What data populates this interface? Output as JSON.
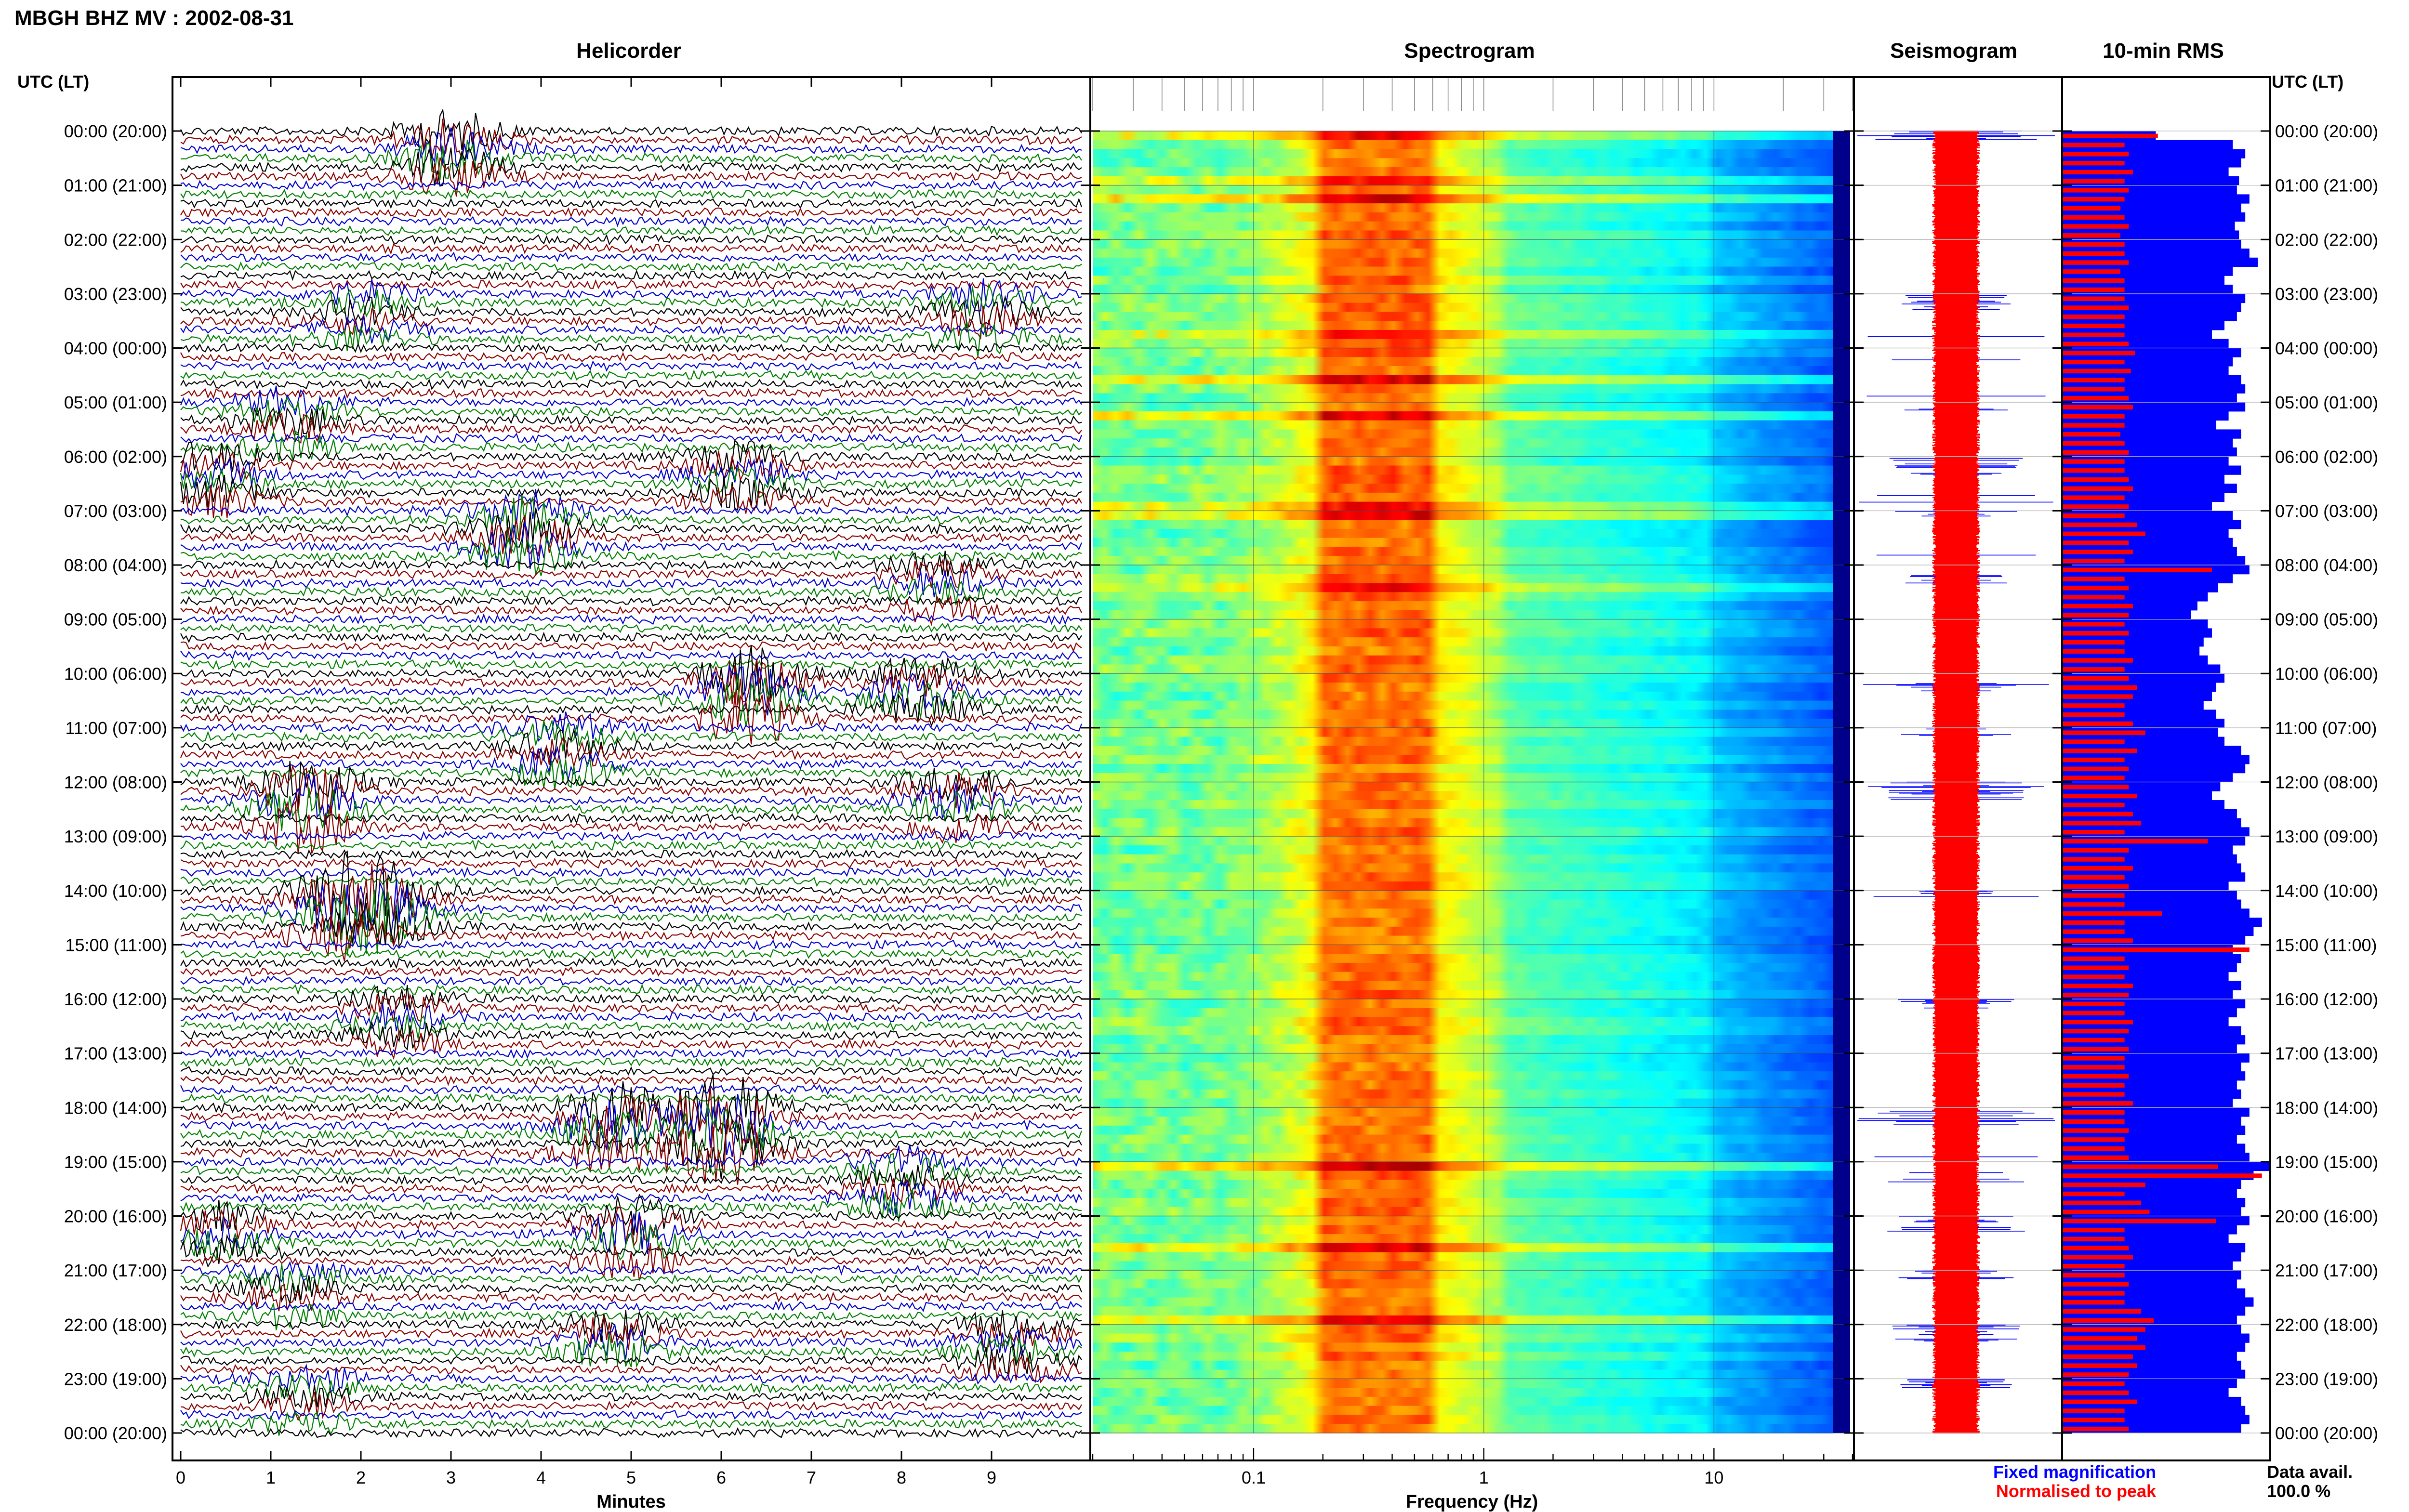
{
  "header": {
    "title": "MBGH BHZ MV : 2002-08-31"
  },
  "panels": {
    "helicorder": "Helicorder",
    "spectrogram": "Spectrogram",
    "seismogram": "Seismogram",
    "rms": "10-min RMS"
  },
  "axes": {
    "time_label_left": "UTC (LT)",
    "time_label_right": "UTC (LT)",
    "helicorder_xlabel": "Minutes",
    "spectrogram_xlabel": "Frequency (Hz)"
  },
  "legend": {
    "fixed": "Fixed magnification",
    "fixed_color": "#0000ff",
    "normalised": "Normalised to peak",
    "normalised_color": "#ff0000"
  },
  "availability": {
    "label": "Data avail.",
    "value": "100.0 %"
  },
  "chart_data": {
    "type": "heatmap",
    "station": "MBGH BHZ MV",
    "date": "2002-08-31",
    "time_labels": [
      "00:00 (20:00)",
      "01:00 (21:00)",
      "02:00 (22:00)",
      "03:00 (23:00)",
      "04:00 (00:00)",
      "05:00 (01:00)",
      "06:00 (02:00)",
      "07:00 (03:00)",
      "08:00 (04:00)",
      "09:00 (05:00)",
      "10:00 (06:00)",
      "11:00 (07:00)",
      "12:00 (08:00)",
      "13:00 (09:00)",
      "14:00 (10:00)",
      "15:00 (11:00)",
      "16:00 (12:00)",
      "17:00 (13:00)",
      "18:00 (14:00)",
      "19:00 (15:00)",
      "20:00 (16:00)",
      "21:00 (17:00)",
      "22:00 (18:00)",
      "23:00 (19:00)",
      "00:00 (20:00)"
    ],
    "helicorder": {
      "xlabel": "Minutes",
      "xticks": [
        "0",
        "1",
        "2",
        "3",
        "4",
        "5",
        "6",
        "7",
        "8",
        "9"
      ],
      "xlim": [
        0,
        10
      ],
      "trace_colors": [
        "#000000",
        "#8b0000",
        "#0000cd",
        "#008000"
      ],
      "events": [
        {
          "hour": 0,
          "minute": 3.0,
          "amp": 1.6
        },
        {
          "hour": 3,
          "minute": 8.9,
          "amp": 1.3
        },
        {
          "hour": 3,
          "minute": 2.0,
          "amp": 1.0
        },
        {
          "hour": 5,
          "minute": 1.2,
          "amp": 1.1
        },
        {
          "hour": 6,
          "minute": 0.4,
          "amp": 1.2
        },
        {
          "hour": 6,
          "minute": 6.2,
          "amp": 1.2
        },
        {
          "hour": 7,
          "minute": 3.8,
          "amp": 1.8
        },
        {
          "hour": 8,
          "minute": 8.4,
          "amp": 1.0
        },
        {
          "hour": 10,
          "minute": 6.3,
          "amp": 2.2
        },
        {
          "hour": 10,
          "minute": 8.2,
          "amp": 1.3
        },
        {
          "hour": 11,
          "minute": 4.2,
          "amp": 1.2
        },
        {
          "hour": 12,
          "minute": 1.4,
          "amp": 2.1
        },
        {
          "hour": 12,
          "minute": 8.6,
          "amp": 1.3
        },
        {
          "hour": 14,
          "minute": 1.8,
          "amp": 1.9
        },
        {
          "hour": 14,
          "minute": 2.2,
          "amp": 1.8
        },
        {
          "hour": 16,
          "minute": 2.4,
          "amp": 1.0
        },
        {
          "hour": 18,
          "minute": 4.8,
          "amp": 2.0
        },
        {
          "hour": 18,
          "minute": 6.0,
          "amp": 2.8
        },
        {
          "hour": 19,
          "minute": 8.0,
          "amp": 1.2
        },
        {
          "hour": 20,
          "minute": 5.0,
          "amp": 1.6
        },
        {
          "hour": 20,
          "minute": 0.4,
          "amp": 1.1
        },
        {
          "hour": 21,
          "minute": 1.2,
          "amp": 1.0
        },
        {
          "hour": 22,
          "minute": 4.8,
          "amp": 1.3
        },
        {
          "hour": 22,
          "minute": 9.2,
          "amp": 1.1
        },
        {
          "hour": 23,
          "minute": 1.4,
          "amp": 1.0
        }
      ]
    },
    "spectrogram": {
      "xlabel": "Frequency (Hz)",
      "xscale": "log",
      "xlim": [
        0.02,
        40
      ],
      "xticks": [
        "0.1",
        "1",
        "10"
      ],
      "peak_band_hz": [
        0.2,
        0.6
      ],
      "colormap": "jet"
    },
    "seismogram": {
      "series": [
        "Fixed magnification",
        "Normalised to peak"
      ]
    },
    "rms": {
      "interval": "10-min",
      "series": [
        "Fixed magnification",
        "Normalised to peak"
      ],
      "fixed": [
        0.45,
        0.82,
        0.88,
        0.86,
        0.8,
        0.85,
        0.84,
        0.9,
        0.86,
        0.88,
        0.83,
        0.85,
        0.86,
        0.9,
        0.94,
        0.82,
        0.78,
        0.82,
        0.88,
        0.86,
        0.84,
        0.78,
        0.72,
        0.8,
        0.86,
        0.82,
        0.8,
        0.86,
        0.88,
        0.84,
        0.88,
        0.8,
        0.74,
        0.86,
        0.82,
        0.84,
        0.8,
        0.86,
        0.78,
        0.84,
        0.78,
        0.72,
        0.82,
        0.86,
        0.8,
        0.82,
        0.84,
        0.88,
        0.9,
        0.82,
        0.75,
        0.7,
        0.65,
        0.62,
        0.7,
        0.72,
        0.68,
        0.66,
        0.7,
        0.76,
        0.78,
        0.74,
        0.72,
        0.68,
        0.74,
        0.78,
        0.75,
        0.78,
        0.86,
        0.9,
        0.88,
        0.82,
        0.76,
        0.72,
        0.78,
        0.84,
        0.86,
        0.9,
        0.88,
        0.82,
        0.84,
        0.86,
        0.88,
        0.8,
        0.84,
        0.86,
        0.9,
        0.96,
        0.92,
        0.88,
        0.82,
        0.86,
        0.84,
        0.8,
        0.86,
        0.82,
        0.88,
        0.84,
        0.8,
        0.86,
        0.88,
        0.84,
        0.9,
        0.86,
        0.88,
        0.84,
        0.86,
        0.82,
        0.9,
        0.86,
        0.88,
        0.84,
        0.88,
        0.9,
        1.0,
        0.92,
        0.86,
        0.84,
        0.88,
        0.86,
        0.9,
        0.84,
        0.8,
        0.88,
        0.86,
        0.82,
        0.86,
        0.84,
        0.88,
        0.92,
        0.88,
        0.84,
        0.86,
        0.9,
        0.88,
        0.84,
        0.86,
        0.88,
        0.84,
        0.8,
        0.86,
        0.88,
        0.9,
        0.86
      ],
      "normalised": [
        0.46,
        0.3,
        0.32,
        0.3,
        0.34,
        0.3,
        0.32,
        0.3,
        0.28,
        0.3,
        0.32,
        0.28,
        0.3,
        0.3,
        0.32,
        0.28,
        0.3,
        0.3,
        0.3,
        0.32,
        0.3,
        0.3,
        0.3,
        0.32,
        0.35,
        0.3,
        0.33,
        0.3,
        0.3,
        0.32,
        0.34,
        0.3,
        0.3,
        0.28,
        0.3,
        0.32,
        0.3,
        0.3,
        0.32,
        0.34,
        0.3,
        0.32,
        0.3,
        0.36,
        0.4,
        0.32,
        0.34,
        0.3,
        0.72,
        0.3,
        0.32,
        0.3,
        0.34,
        0.32,
        0.3,
        0.32,
        0.3,
        0.3,
        0.34,
        0.3,
        0.32,
        0.36,
        0.34,
        0.3,
        0.3,
        0.34,
        0.4,
        0.3,
        0.36,
        0.3,
        0.32,
        0.3,
        0.32,
        0.36,
        0.3,
        0.34,
        0.38,
        0.3,
        0.7,
        0.32,
        0.3,
        0.34,
        0.3,
        0.32,
        0.3,
        0.3,
        0.48,
        0.3,
        0.3,
        0.34,
        0.9,
        0.3,
        0.32,
        0.3,
        0.34,
        0.32,
        0.3,
        0.3,
        0.34,
        0.32,
        0.3,
        0.32,
        0.3,
        0.3,
        0.32,
        0.3,
        0.3,
        0.34,
        0.3,
        0.3,
        0.32,
        0.3,
        0.3,
        0.32,
        0.75,
        0.96,
        0.4,
        0.3,
        0.38,
        0.42,
        0.74,
        0.3,
        0.3,
        0.32,
        0.34,
        0.3,
        0.3,
        0.32,
        0.3,
        0.3,
        0.38,
        0.44,
        0.4,
        0.36,
        0.4,
        0.34,
        0.36,
        0.32,
        0.3,
        0.32,
        0.36,
        0.3,
        0.3,
        0.32
      ]
    }
  }
}
